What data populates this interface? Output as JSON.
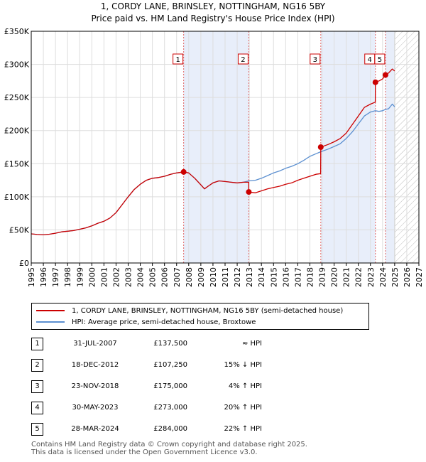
{
  "header": {
    "title": "1, CORDY LANE, BRINSLEY, NOTTINGHAM, NG16 5BY",
    "subtitle": "Price paid vs. HM Land Registry's House Price Index (HPI)"
  },
  "chart_data": {
    "type": "line",
    "xlim": [
      1995,
      2027
    ],
    "ylim": [
      0,
      350000
    ],
    "x_ticks": [
      "1995",
      "1996",
      "1997",
      "1998",
      "1999",
      "2000",
      "2001",
      "2002",
      "2003",
      "2004",
      "2005",
      "2006",
      "2007",
      "2008",
      "2009",
      "2010",
      "2011",
      "2012",
      "2013",
      "2014",
      "2015",
      "2016",
      "2017",
      "2018",
      "2019",
      "2020",
      "2021",
      "2022",
      "2023",
      "2024",
      "2025",
      "2026",
      "2027"
    ],
    "y_ticks": [
      {
        "value": 0,
        "label": "£0"
      },
      {
        "value": 50000,
        "label": "£50K"
      },
      {
        "value": 100000,
        "label": "£100K"
      },
      {
        "value": 150000,
        "label": "£150K"
      },
      {
        "value": 200000,
        "label": "£200K"
      },
      {
        "value": 250000,
        "label": "£250K"
      },
      {
        "value": 300000,
        "label": "£300K"
      },
      {
        "value": 350000,
        "label": "£350K"
      }
    ],
    "shaded_ranges": [
      {
        "from": 2007.58,
        "to": 2012.96,
        "color": "#e8eefa"
      },
      {
        "from": 2018.9,
        "to": 2023.41,
        "color": "#e8eefa"
      },
      {
        "from": 2024.24,
        "to": 2025.0,
        "color": "#e8eefa"
      }
    ],
    "future_hatch_from": 2025.0,
    "series": [
      {
        "name": "1, CORDY LANE, BRINSLEY, NOTTINGHAM, NG16 5BY (semi-detached house)",
        "color": "#cc0000",
        "points": [
          [
            1995.0,
            44000
          ],
          [
            1995.5,
            43000
          ],
          [
            1996.0,
            42500
          ],
          [
            1996.5,
            43500
          ],
          [
            1997.0,
            45000
          ],
          [
            1997.5,
            47000
          ],
          [
            1998.0,
            48000
          ],
          [
            1998.5,
            49000
          ],
          [
            1999.0,
            51000
          ],
          [
            1999.5,
            53000
          ],
          [
            2000.0,
            56000
          ],
          [
            2000.5,
            60000
          ],
          [
            2001.0,
            63000
          ],
          [
            2001.5,
            68000
          ],
          [
            2002.0,
            76000
          ],
          [
            2002.5,
            88000
          ],
          [
            2003.0,
            100000
          ],
          [
            2003.5,
            111000
          ],
          [
            2004.0,
            119000
          ],
          [
            2004.5,
            125000
          ],
          [
            2005.0,
            128000
          ],
          [
            2005.5,
            129000
          ],
          [
            2006.0,
            131000
          ],
          [
            2006.5,
            134000
          ],
          [
            2007.0,
            136000
          ],
          [
            2007.58,
            137500
          ],
          [
            2008.0,
            136000
          ],
          [
            2008.5,
            128000
          ],
          [
            2009.0,
            118000
          ],
          [
            2009.3,
            112000
          ],
          [
            2009.6,
            116000
          ],
          [
            2010.0,
            121000
          ],
          [
            2010.5,
            124000
          ],
          [
            2011.0,
            123000
          ],
          [
            2011.5,
            122000
          ],
          [
            2012.0,
            121000
          ],
          [
            2012.5,
            122000
          ],
          [
            2012.95,
            122000
          ],
          [
            2012.96,
            107250
          ],
          [
            2013.5,
            106000
          ],
          [
            2014.0,
            109000
          ],
          [
            2014.5,
            112000
          ],
          [
            2015.0,
            114000
          ],
          [
            2015.5,
            116000
          ],
          [
            2016.0,
            119000
          ],
          [
            2016.5,
            121000
          ],
          [
            2017.0,
            125000
          ],
          [
            2017.5,
            128000
          ],
          [
            2018.0,
            131000
          ],
          [
            2018.5,
            134000
          ],
          [
            2018.89,
            135000
          ],
          [
            2018.9,
            175000
          ],
          [
            2019.5,
            179000
          ],
          [
            2020.0,
            183000
          ],
          [
            2020.5,
            188000
          ],
          [
            2021.0,
            196000
          ],
          [
            2021.5,
            209000
          ],
          [
            2022.0,
            222000
          ],
          [
            2022.5,
            235000
          ],
          [
            2023.0,
            240000
          ],
          [
            2023.4,
            243000
          ],
          [
            2023.41,
            273000
          ],
          [
            2023.7,
            275000
          ],
          [
            2024.0,
            278000
          ],
          [
            2024.24,
            284000
          ],
          [
            2024.5,
            287000
          ],
          [
            2024.8,
            293000
          ],
          [
            2025.0,
            290000
          ]
        ]
      },
      {
        "name": "HPI: Average price, semi-detached house, Broxtowe",
        "color": "#5b8fd0",
        "points": [
          [
            1995.0,
            44000
          ],
          [
            1995.5,
            43000
          ],
          [
            1996.0,
            42500
          ],
          [
            1996.5,
            43500
          ],
          [
            1997.0,
            45000
          ],
          [
            1997.5,
            47000
          ],
          [
            1998.0,
            48000
          ],
          [
            1998.5,
            49000
          ],
          [
            1999.0,
            51000
          ],
          [
            1999.5,
            53000
          ],
          [
            2000.0,
            56000
          ],
          [
            2000.5,
            60000
          ],
          [
            2001.0,
            63000
          ],
          [
            2001.5,
            68000
          ],
          [
            2002.0,
            76000
          ],
          [
            2002.5,
            88000
          ],
          [
            2003.0,
            100000
          ],
          [
            2003.5,
            111000
          ],
          [
            2004.0,
            119000
          ],
          [
            2004.5,
            125000
          ],
          [
            2005.0,
            128000
          ],
          [
            2005.5,
            129000
          ],
          [
            2006.0,
            131000
          ],
          [
            2006.5,
            134000
          ],
          [
            2007.0,
            136000
          ],
          [
            2007.58,
            137500
          ],
          [
            2008.0,
            136000
          ],
          [
            2008.5,
            128000
          ],
          [
            2009.0,
            118000
          ],
          [
            2009.3,
            112000
          ],
          [
            2009.6,
            116000
          ],
          [
            2010.0,
            121000
          ],
          [
            2010.5,
            124000
          ],
          [
            2011.0,
            123000
          ],
          [
            2011.5,
            122000
          ],
          [
            2012.0,
            121000
          ],
          [
            2012.5,
            122000
          ],
          [
            2012.96,
            124000
          ],
          [
            2013.5,
            125000
          ],
          [
            2014.0,
            128000
          ],
          [
            2014.5,
            132000
          ],
          [
            2015.0,
            136000
          ],
          [
            2015.5,
            139000
          ],
          [
            2016.0,
            143000
          ],
          [
            2016.5,
            146000
          ],
          [
            2017.0,
            150000
          ],
          [
            2017.5,
            155000
          ],
          [
            2018.0,
            161000
          ],
          [
            2018.5,
            165000
          ],
          [
            2018.9,
            168000
          ],
          [
            2019.5,
            172000
          ],
          [
            2020.0,
            176000
          ],
          [
            2020.5,
            180000
          ],
          [
            2021.0,
            188000
          ],
          [
            2021.5,
            198000
          ],
          [
            2022.0,
            210000
          ],
          [
            2022.5,
            222000
          ],
          [
            2023.0,
            228000
          ],
          [
            2023.41,
            230000
          ],
          [
            2023.7,
            229000
          ],
          [
            2024.0,
            230000
          ],
          [
            2024.24,
            232000
          ],
          [
            2024.5,
            233000
          ],
          [
            2024.8,
            240000
          ],
          [
            2025.0,
            236000
          ]
        ]
      }
    ],
    "sales": [
      {
        "id": "1",
        "x": 2007.58,
        "value": 137500
      },
      {
        "id": "2",
        "x": 2012.96,
        "value": 107250
      },
      {
        "id": "3",
        "x": 2018.9,
        "value": 175000
      },
      {
        "id": "4",
        "x": 2023.41,
        "value": 273000
      },
      {
        "id": "5",
        "x": 2024.24,
        "value": 284000
      }
    ]
  },
  "legend": {
    "items": [
      {
        "label": "1, CORDY LANE, BRINSLEY, NOTTINGHAM, NG16 5BY (semi-detached house)",
        "color": "#cc0000"
      },
      {
        "label": "HPI: Average price, semi-detached house, Broxtowe",
        "color": "#5b8fd0"
      }
    ]
  },
  "transactions": [
    {
      "num": "1",
      "date": "31-JUL-2007",
      "price": "£137,500",
      "relation": "≈ HPI"
    },
    {
      "num": "2",
      "date": "18-DEC-2012",
      "price": "£107,250",
      "relation": "15% ↓ HPI"
    },
    {
      "num": "3",
      "date": "23-NOV-2018",
      "price": "£175,000",
      "relation": "4% ↑ HPI"
    },
    {
      "num": "4",
      "date": "30-MAY-2023",
      "price": "£273,000",
      "relation": "20% ↑ HPI"
    },
    {
      "num": "5",
      "date": "28-MAR-2024",
      "price": "£284,000",
      "relation": "22% ↑ HPI"
    }
  ],
  "footer": {
    "line1": "Contains HM Land Registry data © Crown copyright and database right 2025.",
    "line2": "This data is licensed under the Open Government Licence v3.0."
  }
}
